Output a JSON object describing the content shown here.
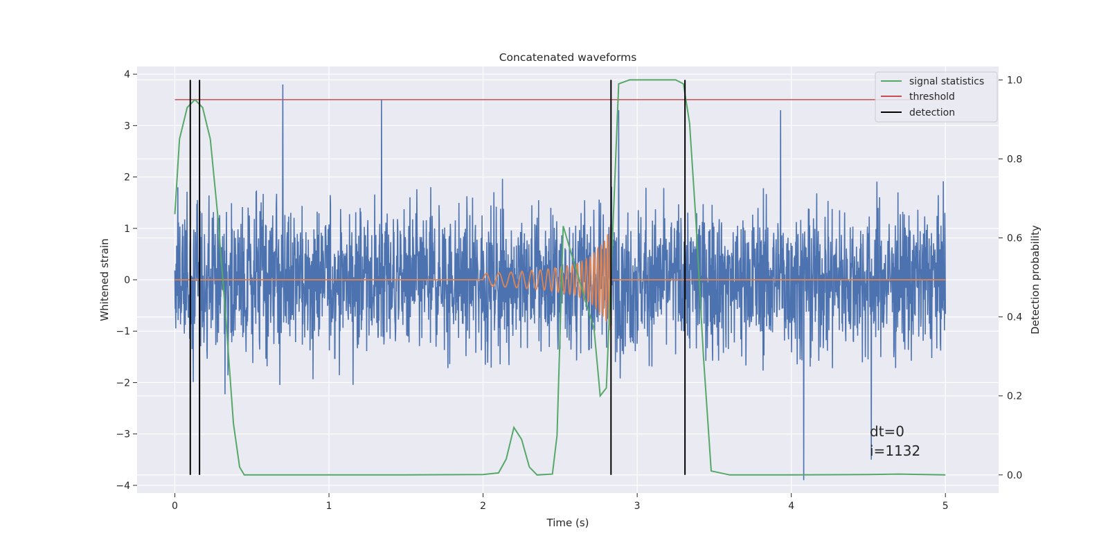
{
  "chart_data": {
    "type": "line",
    "title": "Concatenated waveforms",
    "xlabel": "Time (s)",
    "ylabel": "Whitened strain",
    "y2label": "Detection probability",
    "xlim": [
      -0.245,
      5.345
    ],
    "ylim": [
      -4.15,
      4.15
    ],
    "y2lim": [
      -0.046,
      1.034
    ],
    "xticks": [
      "0",
      "1",
      "2",
      "3",
      "4",
      "5"
    ],
    "yticks": [
      "−4",
      "−3",
      "−2",
      "−1",
      "0",
      "1",
      "2",
      "3",
      "4"
    ],
    "y2ticks": [
      "0.0",
      "0.2",
      "0.4",
      "0.6",
      "0.8",
      "1.0"
    ],
    "grid": true,
    "legend_position": "top-right",
    "legend": [
      {
        "label": "signal statistics",
        "color": "#55a868"
      },
      {
        "label": "threshold",
        "color": "#c44e52"
      },
      {
        "label": "detection",
        "color": "#000000"
      }
    ],
    "series": [
      {
        "role": "strain noise",
        "axis": "left",
        "color": "#4c72b0",
        "x_range": [
          0,
          5
        ],
        "envelope": 1.6,
        "peak_spikes": [
          [
            0.02,
            1.8
          ],
          [
            0.7,
            3.8
          ],
          [
            1.34,
            3.5
          ],
          [
            2.88,
            3.3
          ],
          [
            3.93,
            3.3
          ],
          [
            4.08,
            -3.9
          ],
          [
            4.52,
            -3.5
          ]
        ]
      },
      {
        "role": "injected chirp",
        "axis": "left",
        "color": "#dd8452",
        "x": [
          2.0,
          2.2,
          2.4,
          2.6,
          2.7,
          2.8,
          2.83
        ],
        "amplitude": [
          0.12,
          0.15,
          0.2,
          0.3,
          0.45,
          0.8,
          1.1
        ]
      },
      {
        "name": "signal statistics",
        "axis": "right",
        "color": "#55a868",
        "x": [
          0.0,
          0.03,
          0.08,
          0.13,
          0.18,
          0.23,
          0.28,
          0.33,
          0.38,
          0.42,
          0.45,
          0.6,
          1.0,
          1.5,
          2.0,
          2.1,
          2.15,
          2.2,
          2.25,
          2.3,
          2.35,
          2.45,
          2.48,
          2.52,
          2.58,
          2.65,
          2.72,
          2.76,
          2.8,
          2.84,
          2.88,
          2.95,
          3.1,
          3.25,
          3.3,
          3.34,
          3.38,
          3.43,
          3.48,
          3.6,
          4.0,
          4.5,
          4.7,
          5.0
        ],
        "y": [
          0.66,
          0.85,
          0.93,
          0.95,
          0.93,
          0.85,
          0.65,
          0.4,
          0.13,
          0.02,
          0.0,
          0.0,
          0.0,
          0.0,
          0.001,
          0.005,
          0.04,
          0.12,
          0.09,
          0.02,
          0.0,
          0.002,
          0.1,
          0.63,
          0.55,
          0.46,
          0.37,
          0.2,
          0.22,
          0.6,
          0.99,
          1.0,
          1.0,
          1.0,
          0.99,
          0.89,
          0.65,
          0.3,
          0.01,
          0.0,
          0.0,
          0.001,
          0.002,
          0.0
        ]
      }
    ],
    "threshold": {
      "value": 0.95,
      "x_range": [
        0,
        5
      ]
    },
    "detections": [
      0.1,
      0.16,
      2.83,
      3.31
    ],
    "annotations": [
      "dt=0",
      "i=1132"
    ]
  }
}
